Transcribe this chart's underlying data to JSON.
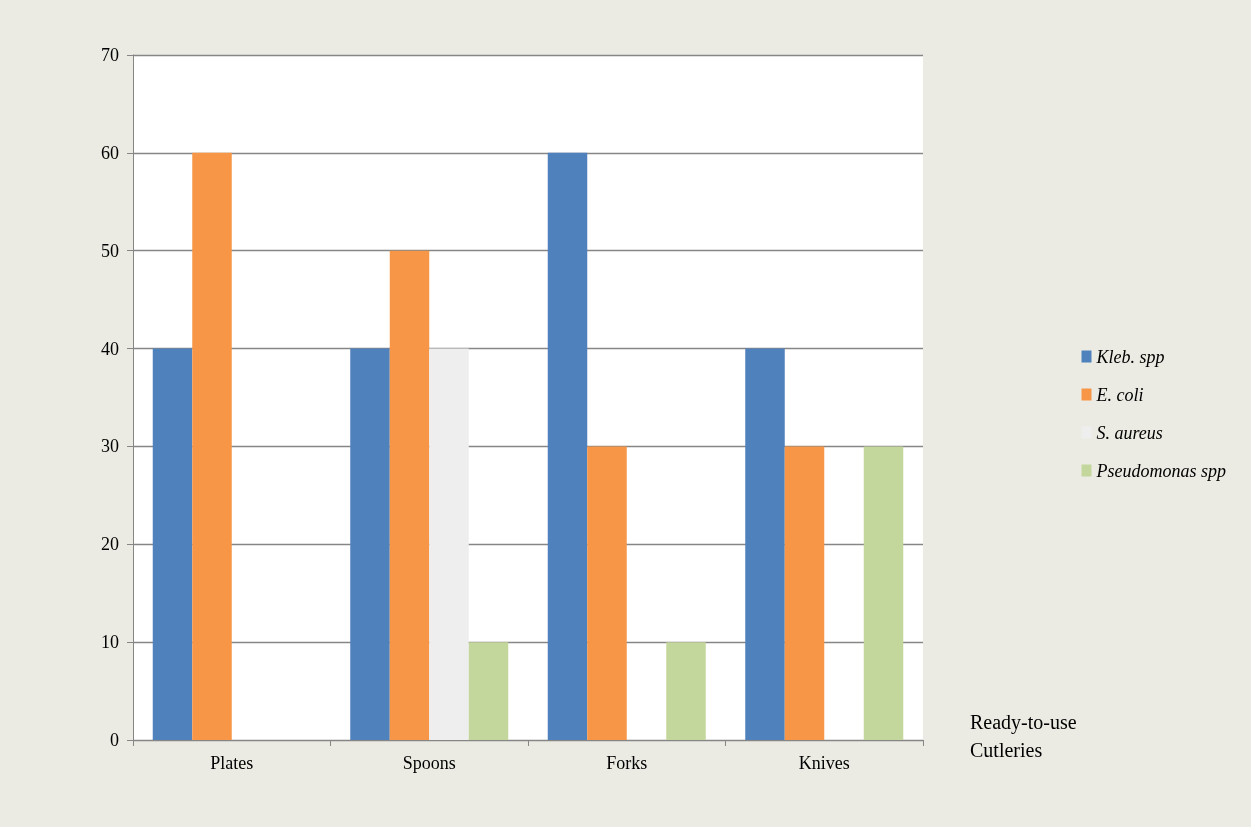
{
  "chart_data": {
    "type": "bar",
    "xlabel": "Ready-to-use Cutleries",
    "categories": [
      "Plates",
      "Spoons",
      "Forks",
      "Knives"
    ],
    "series": [
      {
        "name": "Kleb. spp",
        "color": "#4f81bd",
        "values": [
          40,
          40,
          60,
          40
        ]
      },
      {
        "name": "E. coli",
        "color": "#f79646",
        "values": [
          60,
          50,
          30,
          30
        ]
      },
      {
        "name": "S. aureus",
        "color": "#eeeeee",
        "values": [
          0,
          40,
          0,
          0
        ]
      },
      {
        "name": "Pseudomonas spp",
        "color": "#c3d69b",
        "values": [
          0,
          10,
          10,
          30
        ]
      }
    ],
    "ylim": [
      0,
      70
    ],
    "yticks": [
      0,
      10,
      20,
      30,
      40,
      50,
      60,
      70
    ],
    "grid": "y",
    "legend": "right"
  }
}
